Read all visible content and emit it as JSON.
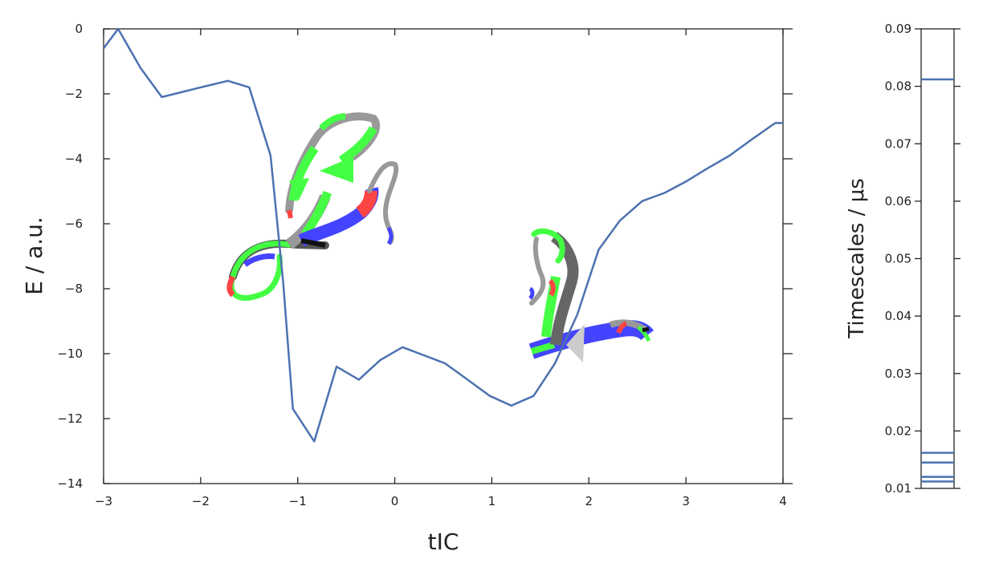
{
  "chart_data": [
    {
      "type": "line",
      "title": "",
      "xlabel": "tIC",
      "ylabel": "E / a.u.",
      "xlim": [
        -3,
        4
      ],
      "ylim": [
        -14,
        0
      ],
      "xticks": [
        "−3",
        "−2",
        "−1",
        "0",
        "1",
        "2",
        "3",
        "4"
      ],
      "yticks": [
        "−14",
        "−12",
        "−10",
        "−8",
        "−6",
        "−4",
        "−2",
        "0"
      ],
      "grid": false,
      "line_color": "#4C72B0",
      "series": [
        {
          "x": [
            -3.0,
            -2.85,
            -2.62,
            -2.4,
            -2.2,
            -2.0,
            -1.72,
            -1.5,
            -1.28,
            -1.15,
            -1.05,
            -0.83,
            -0.6,
            -0.37,
            -0.15,
            0.08,
            0.3,
            0.52,
            0.75,
            0.98,
            1.2,
            1.43,
            1.65,
            1.88,
            2.1,
            2.32,
            2.55,
            2.78,
            3.0,
            3.22,
            3.45,
            3.68,
            3.92,
            4.0
          ],
          "y": [
            -0.6,
            0.0,
            -1.2,
            -2.1,
            -1.95,
            -1.8,
            -1.6,
            -1.8,
            -3.9,
            -7.8,
            -11.7,
            -12.7,
            -10.4,
            -10.8,
            -10.2,
            -9.8,
            -10.05,
            -10.3,
            -10.8,
            -11.3,
            -11.6,
            -11.3,
            -10.3,
            -8.8,
            -6.8,
            -5.9,
            -5.3,
            -5.05,
            -4.7,
            -4.3,
            -3.9,
            -3.4,
            -2.9,
            -2.9
          ]
        }
      ],
      "insets": [
        {
          "name": "unfolded-protein-structure",
          "colors": [
            "#44ff44",
            "#4444ff",
            "#ff4444",
            "#999999",
            "#111111"
          ]
        },
        {
          "name": "folded-protein-structure",
          "colors": [
            "#44ff44",
            "#4444ff",
            "#ff4444",
            "#999999",
            "#111111"
          ]
        }
      ]
    },
    {
      "type": "line",
      "title": "",
      "xlabel": "",
      "ylabel": "Timescales / μs",
      "ylim": [
        0.01,
        0.09
      ],
      "yticks": [
        "0.01",
        "0.02",
        "0.03",
        "0.04",
        "0.05",
        "0.06",
        "0.07",
        "0.08",
        "0.09"
      ],
      "line_color": "#4C72B0",
      "values": [
        0.0812,
        0.0162,
        0.0145,
        0.012,
        0.0112
      ]
    }
  ]
}
